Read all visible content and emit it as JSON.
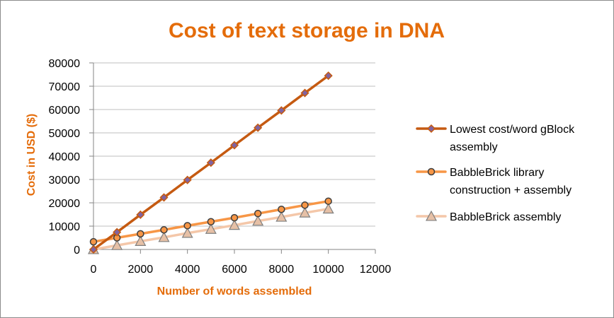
{
  "chart_data": {
    "type": "line",
    "title": "Cost of text storage in DNA",
    "xlabel": "Number of words assembled",
    "ylabel": "Cost in USD ($)",
    "xlim": [
      0,
      12000
    ],
    "ylim": [
      0,
      80000
    ],
    "x_ticks": [
      0,
      2000,
      4000,
      6000,
      8000,
      10000,
      12000
    ],
    "y_ticks": [
      0,
      10000,
      20000,
      30000,
      40000,
      50000,
      60000,
      70000,
      80000
    ],
    "grid": "horizontal-major",
    "legend_position": "right",
    "x": [
      0,
      1000,
      2000,
      3000,
      4000,
      5000,
      6000,
      7000,
      8000,
      9000,
      10000
    ],
    "series": [
      {
        "name": "Lowest cost/word gBlock assembly",
        "legend_lines": [
          "Lowest cost/word gBlock",
          "assembly"
        ],
        "values": [
          0,
          7400,
          14900,
          22300,
          29800,
          37200,
          44700,
          52200,
          59600,
          67100,
          74500
        ],
        "line_color": "#C55A11",
        "marker": "diamond",
        "marker_fill": "#8064A2",
        "marker_stroke": "#C55A11"
      },
      {
        "name": "BabbleBrick library construction + assembly",
        "legend_lines": [
          "BabbleBrick library",
          "construction + assembly"
        ],
        "values": [
          3300,
          5000,
          6700,
          8400,
          10200,
          11900,
          13600,
          15400,
          17200,
          19000,
          20700
        ],
        "line_color": "#F79646",
        "marker": "circle",
        "marker_fill": "#F79646",
        "marker_stroke": "#3F3F3F"
      },
      {
        "name": "BabbleBrick assembly",
        "legend_lines": [
          "BabbleBrick assembly"
        ],
        "values": [
          0,
          1750,
          3500,
          5200,
          7000,
          8700,
          10400,
          12200,
          13900,
          15700,
          17400
        ],
        "line_color": "#F4C7A9",
        "marker": "triangle",
        "marker_fill": "#E6C0A6",
        "marker_stroke": "#7F7F7F"
      }
    ],
    "colors": {
      "title": "#E46C0A",
      "axis_title": "#E46C0A",
      "grid": "#BFBFBF",
      "axis": "#868686"
    }
  }
}
